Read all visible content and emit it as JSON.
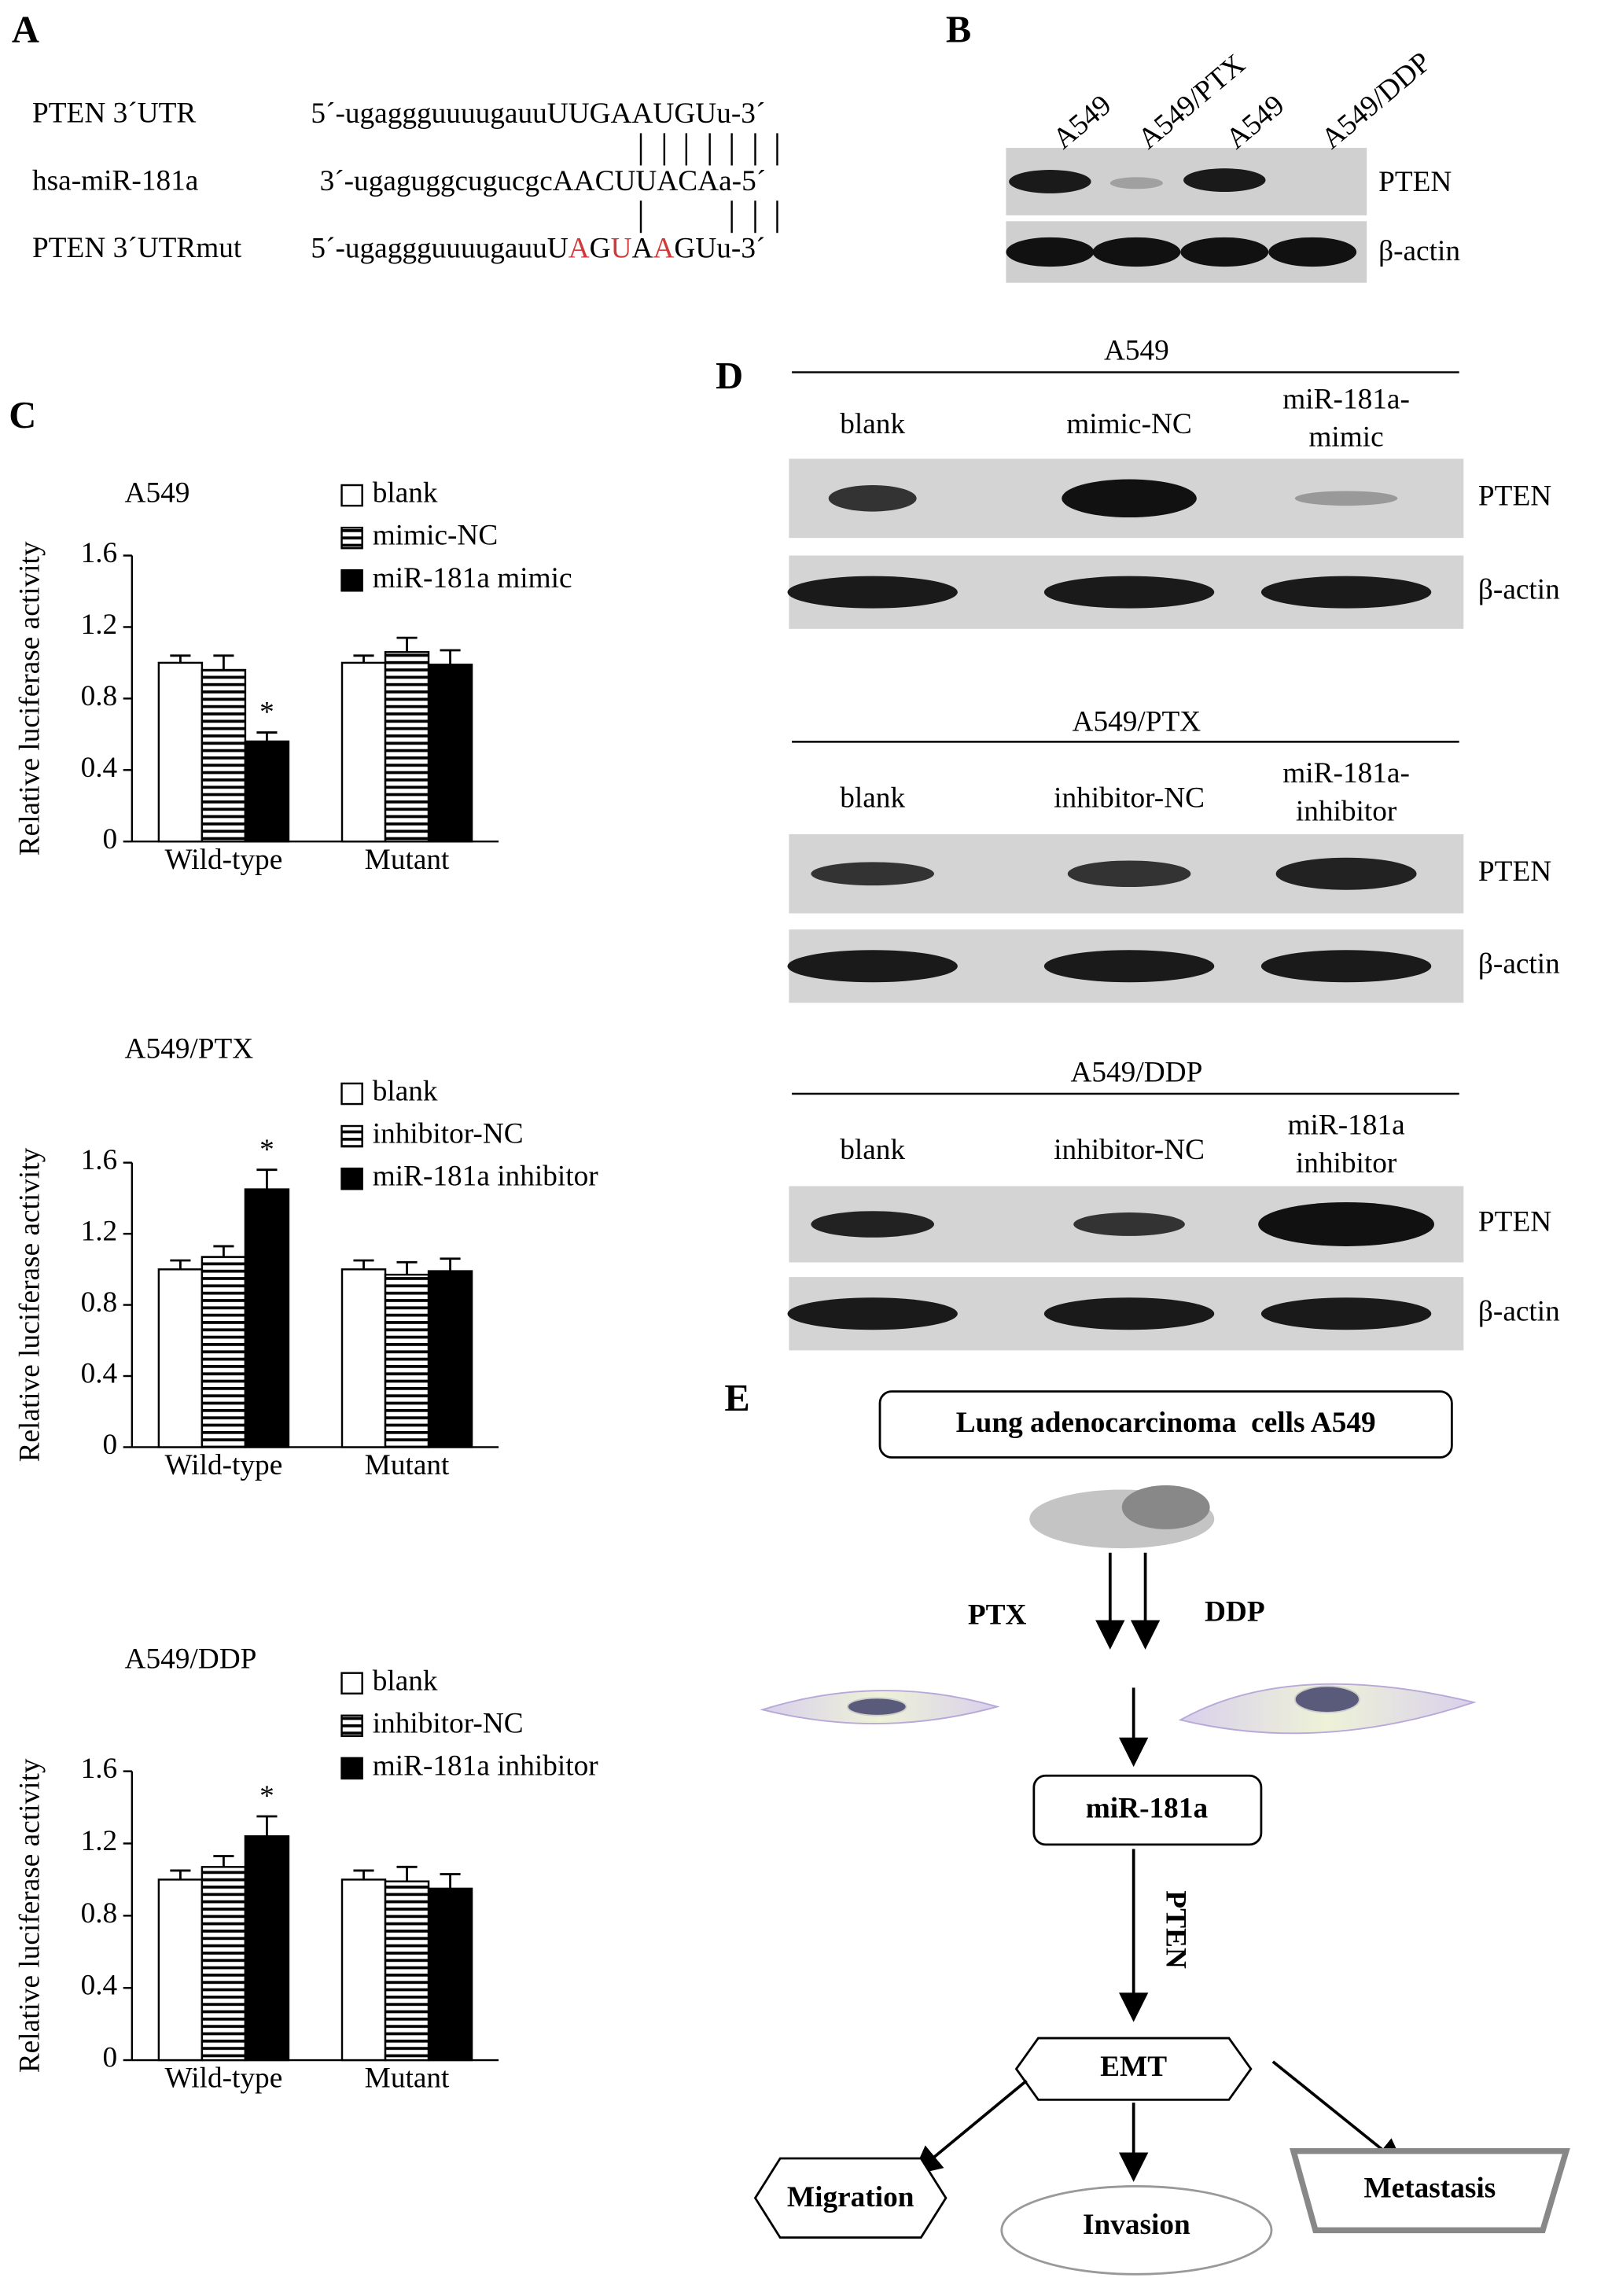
{
  "panel_labels": [
    "A",
    "B",
    "C",
    "D",
    "E"
  ],
  "panel_a": {
    "rows": [
      {
        "label": "PTEN 3´UTR",
        "sequence": [
          {
            "text": "5´-ugaggguuuugauuUUGAAUGUu-3´"
          }
        ]
      },
      {
        "label": "hsa-miR-181a",
        "sequence": [
          {
            "text": "3´-ugaguggcugucgcAACUUACAa-5´"
          }
        ]
      },
      {
        "label": "PTEN 3´UTRmut",
        "sequence": [
          {
            "text": "5´-ugaggguuuugauuU"
          },
          {
            "text": "A",
            "color": "#d03a3a"
          },
          {
            "text": "G"
          },
          {
            "text": "U",
            "color": "#d03a3a"
          },
          {
            "text": "A"
          },
          {
            "text": "A",
            "color": "#d03a3a"
          },
          {
            "text": "GUu-3´"
          }
        ]
      }
    ]
  },
  "panel_b": {
    "lanes": [
      "A549",
      "A549/PTX",
      "A549",
      "A549/DDP"
    ],
    "bands": [
      "PTEN",
      "β-actin"
    ]
  },
  "chart_data": [
    {
      "type": "bar",
      "title": "A549",
      "y_label": "Relative luciferase activity",
      "categories": [
        "Wild-type",
        "Mutant"
      ],
      "series": [
        {
          "name": "blank",
          "color": "#ffffff",
          "pattern": "solid",
          "values": [
            1.0,
            1.0
          ],
          "errors": [
            0.04,
            0.04
          ]
        },
        {
          "name": "mimic-NC",
          "color": "#000000",
          "pattern": "hlines",
          "values": [
            0.96,
            1.06
          ],
          "errors": [
            0.08,
            0.08
          ]
        },
        {
          "name": "miR-181a mimic",
          "color": "#000000",
          "pattern": "solid",
          "values": [
            0.56,
            0.99
          ],
          "errors": [
            0.05,
            0.08
          ]
        }
      ],
      "ylim": [
        0,
        1.6
      ],
      "yticks": [
        0,
        0.4,
        0.8,
        1.2,
        1.6
      ],
      "annotations": [
        {
          "text": "*",
          "category": "Wild-type",
          "series": "miR-181a mimic"
        }
      ]
    },
    {
      "type": "bar",
      "title": "A549/PTX",
      "y_label": "Relative luciferase activity",
      "categories": [
        "Wild-type",
        "Mutant"
      ],
      "series": [
        {
          "name": "blank",
          "color": "#ffffff",
          "pattern": "solid",
          "values": [
            1.0,
            1.0
          ],
          "errors": [
            0.05,
            0.05
          ]
        },
        {
          "name": "inhibitor-NC",
          "color": "#000000",
          "pattern": "hlines",
          "values": [
            1.07,
            0.97
          ],
          "errors": [
            0.06,
            0.07
          ]
        },
        {
          "name": "miR-181a inhibitor",
          "color": "#000000",
          "pattern": "solid",
          "values": [
            1.45,
            0.99
          ],
          "errors": [
            0.11,
            0.07
          ]
        }
      ],
      "ylim": [
        0,
        1.6
      ],
      "yticks": [
        0,
        0.4,
        0.8,
        1.2,
        1.6
      ],
      "annotations": [
        {
          "text": "*",
          "category": "Wild-type",
          "series": "miR-181a inhibitor"
        }
      ]
    },
    {
      "type": "bar",
      "title": "A549/DDP",
      "y_label": "Relative luciferase activity",
      "categories": [
        "Wild-type",
        "Mutant"
      ],
      "series": [
        {
          "name": "blank",
          "color": "#ffffff",
          "pattern": "solid",
          "values": [
            1.0,
            1.0
          ],
          "errors": [
            0.05,
            0.05
          ]
        },
        {
          "name": "inhibitor-NC",
          "color": "#000000",
          "pattern": "hlines",
          "values": [
            1.07,
            0.99
          ],
          "errors": [
            0.06,
            0.08
          ]
        },
        {
          "name": "miR-181a inhibitor",
          "color": "#000000",
          "pattern": "solid",
          "values": [
            1.24,
            0.95
          ],
          "errors": [
            0.11,
            0.08
          ]
        }
      ],
      "ylim": [
        0,
        1.6
      ],
      "yticks": [
        0,
        0.4,
        0.8,
        1.2,
        1.6
      ],
      "annotations": [
        {
          "text": "*",
          "category": "Wild-type",
          "series": "miR-181a inhibitor"
        }
      ]
    }
  ],
  "panel_d": {
    "blots": [
      {
        "title": "A549",
        "lanes": [
          [
            "blank"
          ],
          [
            "mimic-NC"
          ],
          [
            "miR-181a-",
            "mimic"
          ]
        ],
        "bands": [
          "PTEN",
          "β-actin"
        ]
      },
      {
        "title": "A549/PTX",
        "lanes": [
          [
            "blank"
          ],
          [
            "inhibitor-NC"
          ],
          [
            "miR-181a-",
            "inhibitor"
          ]
        ],
        "bands": [
          "PTEN",
          "β-actin"
        ]
      },
      {
        "title": "A549/DDP",
        "lanes": [
          [
            "blank"
          ],
          [
            "inhibitor-NC"
          ],
          [
            "miR-181a",
            "inhibitor"
          ]
        ],
        "bands": [
          "PTEN",
          "β-actin"
        ]
      }
    ]
  },
  "panel_e": {
    "source": "Lung adenocarcinoma  cells A549",
    "drugs": [
      "PTX",
      "DDP"
    ],
    "mirna": "miR-181a",
    "target": "PTEN",
    "process": "EMT",
    "outcomes": [
      "Migration",
      "Invasion",
      "Metastasis"
    ]
  }
}
